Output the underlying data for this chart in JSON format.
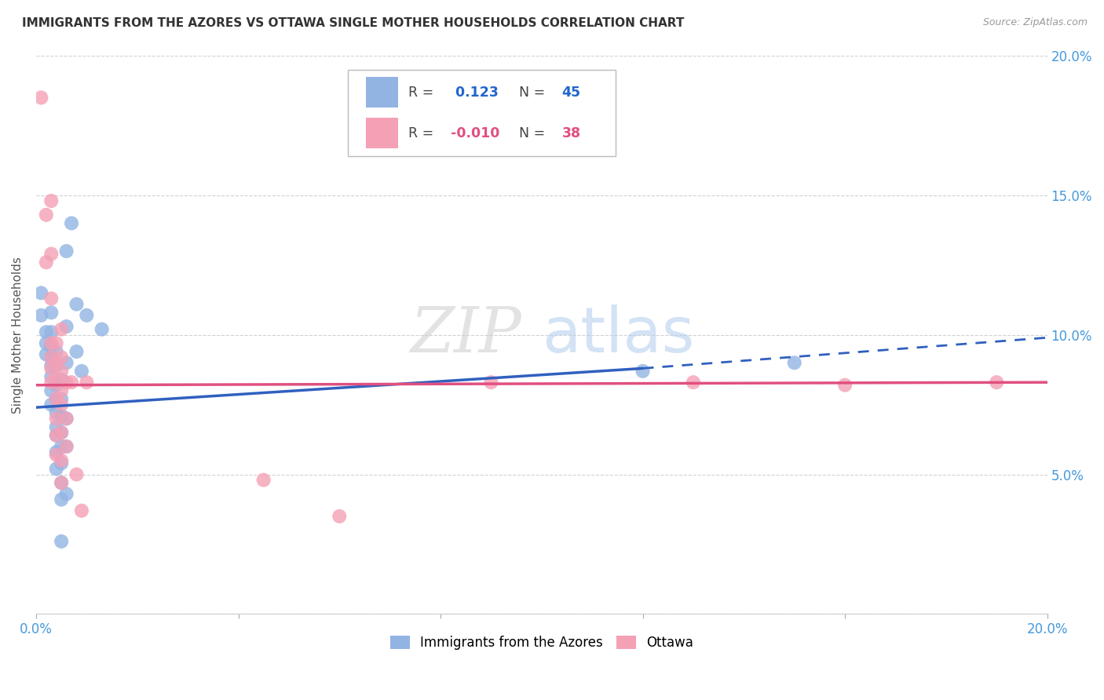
{
  "title": "IMMIGRANTS FROM THE AZORES VS OTTAWA SINGLE MOTHER HOUSEHOLDS CORRELATION CHART",
  "source": "Source: ZipAtlas.com",
  "ylabel": "Single Mother Households",
  "xlim": [
    0.0,
    0.2
  ],
  "ylim": [
    0.0,
    0.2
  ],
  "blue_R": 0.123,
  "blue_N": 45,
  "pink_R": -0.01,
  "pink_N": 38,
  "blue_color": "#92B4E3",
  "pink_color": "#F4A0B5",
  "blue_line_color": "#3060C0",
  "pink_line_color": "#E05080",
  "legend_blue_label": "Immigrants from the Azores",
  "legend_pink_label": "Ottawa",
  "blue_line_solid": [
    [
      0.0,
      0.074
    ],
    [
      0.12,
      0.088
    ]
  ],
  "blue_line_dashed": [
    [
      0.12,
      0.088
    ],
    [
      0.2,
      0.099
    ]
  ],
  "pink_line": [
    [
      0.0,
      0.082
    ],
    [
      0.2,
      0.083
    ]
  ],
  "blue_scatter": [
    [
      0.001,
      0.115
    ],
    [
      0.001,
      0.107
    ],
    [
      0.002,
      0.101
    ],
    [
      0.002,
      0.097
    ],
    [
      0.002,
      0.093
    ],
    [
      0.003,
      0.108
    ],
    [
      0.003,
      0.101
    ],
    [
      0.003,
      0.096
    ],
    [
      0.003,
      0.092
    ],
    [
      0.003,
      0.089
    ],
    [
      0.003,
      0.085
    ],
    [
      0.003,
      0.08
    ],
    [
      0.003,
      0.075
    ],
    [
      0.004,
      0.094
    ],
    [
      0.004,
      0.089
    ],
    [
      0.004,
      0.082
    ],
    [
      0.004,
      0.077
    ],
    [
      0.004,
      0.072
    ],
    [
      0.004,
      0.067
    ],
    [
      0.004,
      0.064
    ],
    [
      0.004,
      0.058
    ],
    [
      0.004,
      0.052
    ],
    [
      0.005,
      0.084
    ],
    [
      0.005,
      0.077
    ],
    [
      0.005,
      0.071
    ],
    [
      0.005,
      0.065
    ],
    [
      0.005,
      0.06
    ],
    [
      0.005,
      0.054
    ],
    [
      0.005,
      0.047
    ],
    [
      0.005,
      0.041
    ],
    [
      0.005,
      0.026
    ],
    [
      0.006,
      0.13
    ],
    [
      0.006,
      0.103
    ],
    [
      0.006,
      0.09
    ],
    [
      0.006,
      0.07
    ],
    [
      0.006,
      0.06
    ],
    [
      0.006,
      0.043
    ],
    [
      0.007,
      0.14
    ],
    [
      0.008,
      0.111
    ],
    [
      0.008,
      0.094
    ],
    [
      0.009,
      0.087
    ],
    [
      0.01,
      0.107
    ],
    [
      0.013,
      0.102
    ],
    [
      0.12,
      0.087
    ],
    [
      0.15,
      0.09
    ]
  ],
  "pink_scatter": [
    [
      0.001,
      0.185
    ],
    [
      0.002,
      0.143
    ],
    [
      0.002,
      0.126
    ],
    [
      0.003,
      0.129
    ],
    [
      0.003,
      0.148
    ],
    [
      0.003,
      0.113
    ],
    [
      0.003,
      0.097
    ],
    [
      0.003,
      0.092
    ],
    [
      0.003,
      0.088
    ],
    [
      0.003,
      0.083
    ],
    [
      0.004,
      0.097
    ],
    [
      0.004,
      0.09
    ],
    [
      0.004,
      0.084
    ],
    [
      0.004,
      0.077
    ],
    [
      0.004,
      0.07
    ],
    [
      0.004,
      0.064
    ],
    [
      0.004,
      0.057
    ],
    [
      0.005,
      0.102
    ],
    [
      0.005,
      0.092
    ],
    [
      0.005,
      0.087
    ],
    [
      0.005,
      0.08
    ],
    [
      0.005,
      0.075
    ],
    [
      0.005,
      0.065
    ],
    [
      0.005,
      0.055
    ],
    [
      0.005,
      0.047
    ],
    [
      0.006,
      0.083
    ],
    [
      0.006,
      0.07
    ],
    [
      0.006,
      0.06
    ],
    [
      0.007,
      0.083
    ],
    [
      0.008,
      0.05
    ],
    [
      0.009,
      0.037
    ],
    [
      0.01,
      0.083
    ],
    [
      0.045,
      0.048
    ],
    [
      0.06,
      0.035
    ],
    [
      0.09,
      0.083
    ],
    [
      0.13,
      0.083
    ],
    [
      0.16,
      0.082
    ],
    [
      0.19,
      0.083
    ]
  ]
}
